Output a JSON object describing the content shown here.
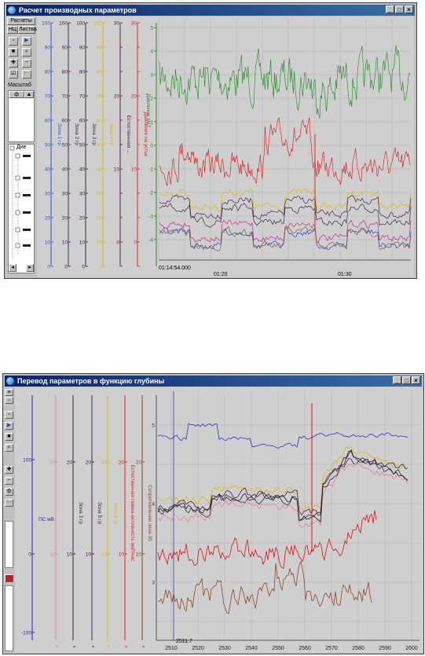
{
  "window1": {
    "title": "Расчет производных параметров",
    "buttons": [
      "_",
      "□",
      "×"
    ],
    "toolbar": {
      "tab1": "Расчеты",
      "tab2": "НЦ",
      "tab3": "Листва",
      "scale_label": "Масштаб",
      "scale_value": "ф"
    },
    "tree_label": "Дие",
    "scales": [
      {
        "color": "#2a58d8",
        "ticks": [
          "100",
          "90",
          "80",
          "70",
          "60",
          "50",
          "40",
          "30",
          "20",
          "10",
          "0"
        ]
      },
      {
        "color": "#4a2050",
        "ticks": [
          "100",
          "90",
          "80",
          "70",
          "60",
          "50",
          "40",
          "30",
          "20",
          "10",
          "0"
        ]
      },
      {
        "color": "#3a2a40",
        "ticks": [
          "100",
          "90",
          "80",
          "70",
          "60",
          "50",
          "40",
          "30",
          "20",
          "10",
          "0"
        ]
      },
      {
        "color": "#d0c000",
        "ticks": [
          "100",
          "90",
          "80",
          "70",
          "60",
          "50",
          "40",
          "30",
          "20",
          "10",
          "0"
        ]
      },
      {
        "color": "#5a2040",
        "ticks": [
          "30",
          "",
          "",
          "20",
          "",
          "",
          "10",
          "",
          "",
          "0",
          ""
        ]
      },
      {
        "color": "#e02020",
        "ticks": [
          "30",
          "",
          "",
          "20",
          "",
          "",
          "10",
          "",
          "",
          "0",
          ""
        ]
      }
    ],
    "scale_names": [
      "Зона 1 гр",
      "Зона 2 гр",
      "Зона 3 гр",
      "Зона 4 гр",
      "Естественная ...",
      "Давление на устье"
    ],
    "right_axis": {
      "color": "#2a8a2a",
      "ticks": [
        "5",
        "4",
        "3",
        "2",
        "1",
        "0",
        "-1",
        "-2",
        "-3",
        "-4"
      ],
      "name": "Давление НКТ"
    },
    "timestamp": "01:14:54.000",
    "x_ticks": [
      "01:20",
      "01:30"
    ]
  },
  "window2": {
    "title": "Перевод параметров в функцию глубины",
    "buttons": [
      "_",
      "□",
      "×"
    ],
    "scales": [
      {
        "color": "#2020c0",
        "ticks": [
          "100",
          "",
          "0",
          "",
          "-100"
        ]
      },
      {
        "color": "#e080a0",
        "ticks": [
          "20",
          "10",
          "0"
        ]
      },
      {
        "color": "#3a2a40",
        "ticks": [
          "20",
          "10",
          "0"
        ]
      },
      {
        "color": "#4a2050",
        "ticks": [
          "20",
          "10",
          "0"
        ]
      },
      {
        "color": "#d0c000",
        "ticks": [
          "20",
          "10",
          "0"
        ]
      },
      {
        "color": "#e02020",
        "ticks": [
          "20",
          "10",
          "0"
        ]
      },
      {
        "color": "#8a4a20",
        "ticks": [
          "20",
          "10",
          "0"
        ]
      }
    ],
    "scale_names": [
      "ПС мВ",
      "Зона 3 гр",
      "Зона 5 гр",
      "Зона 9 гр",
      "Естественная гамма-активность мкР/час",
      "Сопротивление зона 3б"
    ],
    "y_ticks": [
      "5",
      "4",
      "3"
    ],
    "depth_marker": "2511.7",
    "x_ticks": [
      "2510",
      "2520",
      "2530",
      "2540",
      "2550",
      "2560",
      "2570",
      "2580",
      "2590",
      "2600"
    ]
  },
  "colors": {
    "titlebar": "#0a246a",
    "panel": "#c0c0c0",
    "plot_bg": "#cfcfcf"
  }
}
